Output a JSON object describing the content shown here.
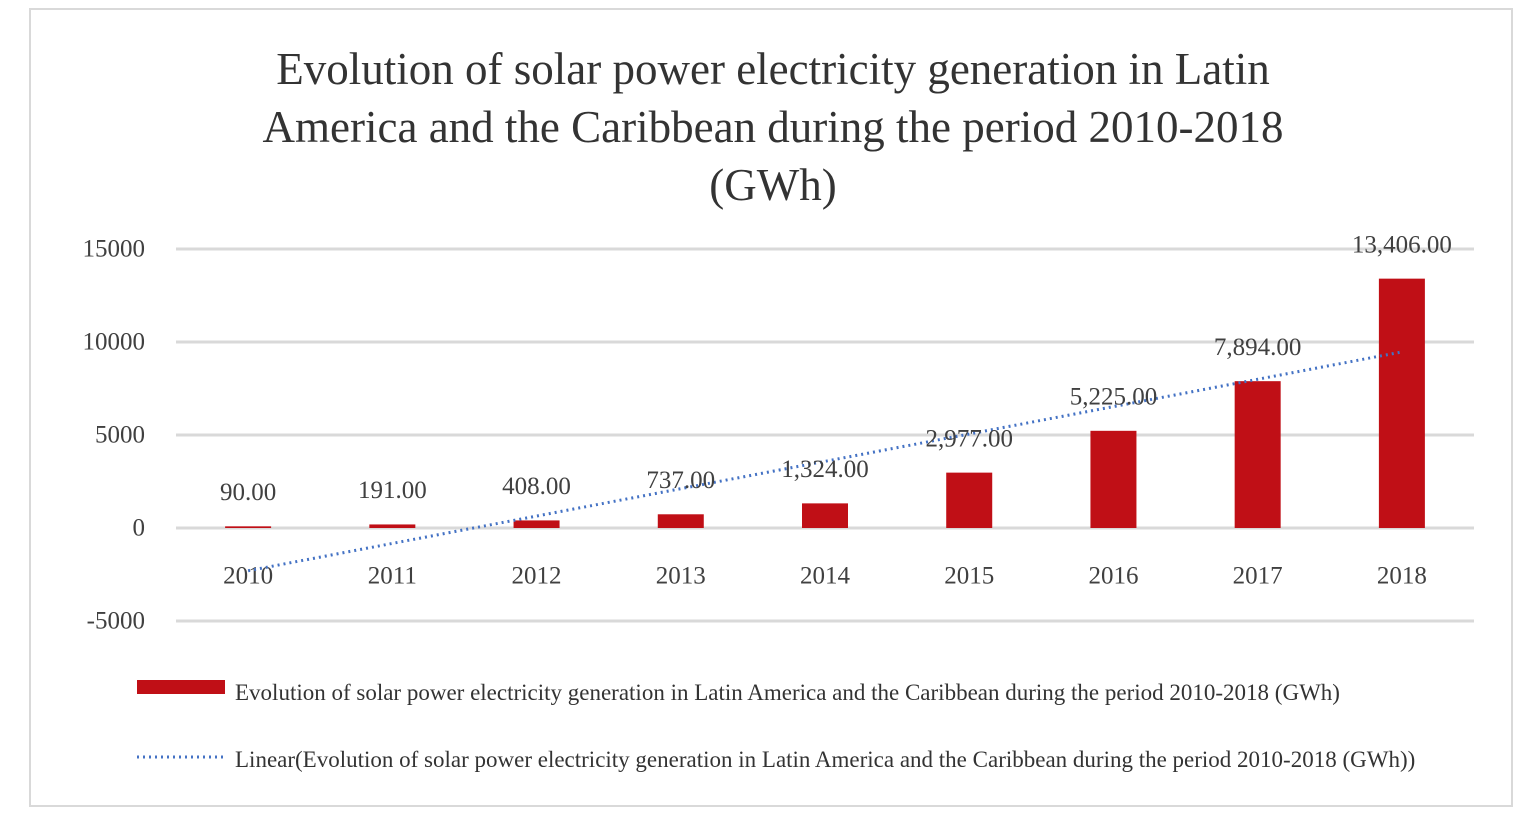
{
  "chart_data": {
    "type": "bar",
    "title": "Evolution of solar power electricity generation in Latin America and the Caribbean during the period 2010-2018 (GWh)",
    "categories": [
      "2010",
      "2011",
      "2012",
      "2013",
      "2014",
      "2015",
      "2016",
      "2017",
      "2018"
    ],
    "series": [
      {
        "name": "Evolution of solar power electricity generation in Latin America and the Caribbean during the period 2010-2018 (GWh)",
        "color": "#c00f16",
        "values": [
          90,
          191,
          408,
          737,
          1324,
          2977,
          5225,
          7894,
          13406
        ],
        "value_labels": [
          "90.00",
          "191.00",
          "408.00",
          "737.00",
          "1,324.00",
          "2,977.00",
          "5,225.00",
          "7,894.00",
          "13,406.00"
        ]
      }
    ],
    "trendline": {
      "type": "linear",
      "name": "Linear(Evolution of solar power electricity generation in Latin America and the Caribbean during the period 2010-2018 (GWh))",
      "color": "#4472c4"
    },
    "ylim": [
      -5000,
      15000
    ],
    "yticks": [
      -5000,
      0,
      5000,
      10000,
      15000
    ],
    "grid": true
  }
}
